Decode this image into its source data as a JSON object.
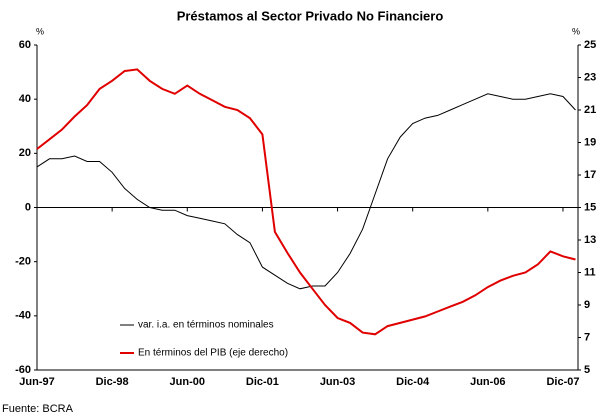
{
  "chart_data": {
    "type": "line",
    "title": "Préstamos al Sector Privado No Financiero",
    "y_label": "%",
    "y2_label": "%",
    "source": "Fuente: BCRA",
    "categories": [
      "Jun-97",
      null,
      null,
      null,
      null,
      null,
      "Dic-98",
      null,
      null,
      null,
      null,
      null,
      "Jun-00",
      null,
      null,
      null,
      null,
      null,
      "Dic-01",
      null,
      null,
      null,
      null,
      null,
      "Jun-03",
      null,
      null,
      null,
      null,
      null,
      "Dic-04",
      null,
      null,
      null,
      null,
      null,
      "Jun-06",
      null,
      null,
      null,
      null,
      null,
      "Dic-07",
      null
    ],
    "series": [
      {
        "name": "var. i.a. en términos nominales",
        "color": "#000000",
        "values": [
          15,
          18,
          18,
          19,
          17,
          17,
          13,
          7,
          3,
          0,
          -1,
          -1,
          -3,
          -4,
          -5,
          -6,
          -10,
          -13,
          -22,
          -25,
          -28,
          -30,
          -29,
          -29,
          -24,
          -17,
          -8,
          5,
          18,
          26,
          31,
          33,
          34,
          36,
          38,
          40,
          42,
          41,
          40,
          40,
          41,
          42,
          41,
          36
        ]
      },
      {
        "name": "En términos del PIB (eje derecho)",
        "color": "#e00000",
        "axis": "y2",
        "values": [
          18.6,
          19.2,
          19.8,
          20.6,
          21.3,
          22.3,
          22.8,
          23.4,
          23.5,
          22.8,
          22.3,
          22.0,
          22.5,
          22.0,
          21.6,
          21.2,
          21.0,
          20.5,
          19.5,
          13.5,
          12.2,
          11.0,
          10.0,
          9.0,
          8.2,
          7.9,
          7.3,
          7.2,
          7.7,
          7.9,
          8.1,
          8.3,
          8.6,
          8.9,
          9.2,
          9.6,
          10.1,
          10.5,
          10.8,
          11.0,
          11.5,
          12.3,
          12.0,
          11.8
        ]
      }
    ],
    "ylim": [
      -60,
      60
    ],
    "yticks": [
      -60,
      -40,
      -20,
      0,
      20,
      40,
      60
    ],
    "y2lim": [
      5,
      25
    ],
    "y2ticks": [
      5,
      7,
      9,
      11,
      13,
      15,
      17,
      19,
      21,
      23,
      25
    ],
    "legend": "lower left",
    "grid": false
  }
}
